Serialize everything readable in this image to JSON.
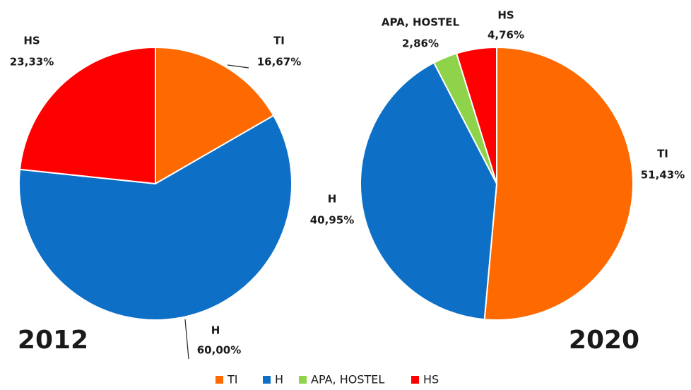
{
  "chart_data": [
    {
      "type": "pie",
      "title": "2012",
      "categories": [
        "TI",
        "H",
        "HS"
      ],
      "values": [
        16.67,
        60.0,
        23.33
      ],
      "value_labels": [
        "16,67%",
        "60,00%",
        "23,33%"
      ],
      "colors": [
        "#ff6a00",
        "#0e6fc6",
        "#ff0000"
      ]
    },
    {
      "type": "pie",
      "title": "2020",
      "categories": [
        "TI",
        "H",
        "APA, HOSTEL",
        "HS"
      ],
      "values": [
        51.43,
        40.95,
        2.86,
        4.76
      ],
      "value_labels": [
        "51,43%",
        "40,95%",
        "2,86%",
        "4,76%"
      ],
      "colors": [
        "#ff6a00",
        "#0e6fc6",
        "#8ed34a",
        "#ff0000"
      ]
    }
  ],
  "legend": {
    "items": [
      {
        "name": "TI",
        "color": "#ff6a00"
      },
      {
        "name": "H",
        "color": "#0e6fc6"
      },
      {
        "name": "APA, HOSTEL",
        "color": "#8ed34a"
      },
      {
        "name": "HS",
        "color": "#ff0000"
      }
    ]
  }
}
